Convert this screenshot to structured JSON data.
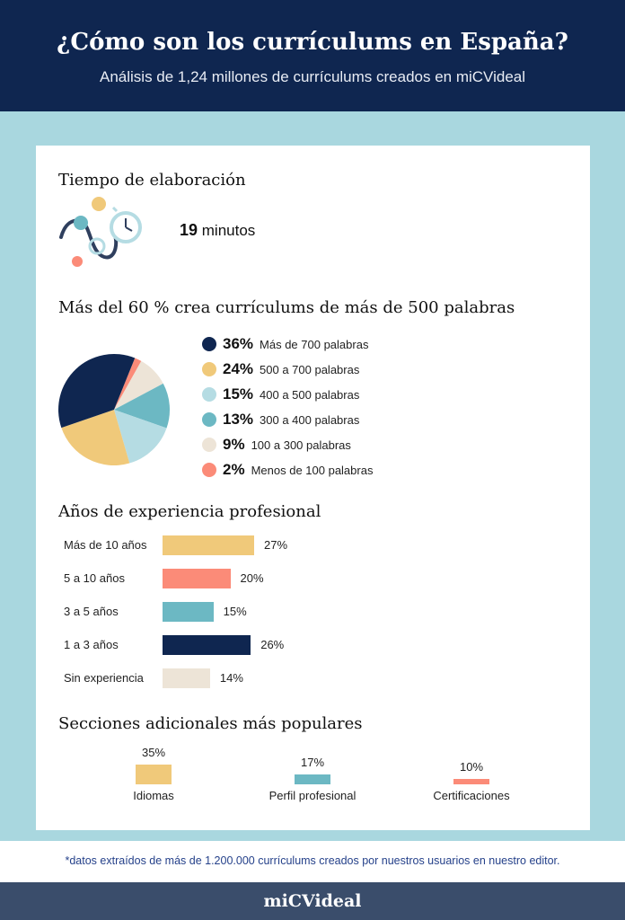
{
  "header": {
    "title": "¿Cómo son los currículums en España?",
    "subtitle": "Análisis de 1,24 millones de currículums creados en miCVideal"
  },
  "time_section": {
    "title": "Tiempo de elaboración",
    "value": "19",
    "unit": " minutos",
    "illustration": "timer-illustration-icon"
  },
  "words_section": {
    "title": "Más del 60 % crea currículums de más de 500 palabras"
  },
  "experience_section": {
    "title": "Años de experiencia profesional"
  },
  "sections_section": {
    "title": "Secciones adicionales más populares"
  },
  "footnote": "*datos extraídos de más de 1.200.000 currículums creados por nuestros usuarios en nuestro editor.",
  "footer": {
    "brand": "miCVideal"
  },
  "colors": {
    "navy": "#0f2650",
    "yellow": "#f0c97a",
    "lightblue": "#b5dce3",
    "teal": "#6cb8c3",
    "beige": "#ede4d7",
    "coral": "#fb8b78",
    "band": "#a9d7df"
  },
  "chart_data": [
    {
      "type": "pie",
      "title": "Más del 60 % crea currículums de más de 500 palabras",
      "slices": [
        {
          "label": "Más de 700 palabras",
          "value": 36,
          "display": "36%",
          "color": "#0f2650"
        },
        {
          "label": "500 a 700 palabras",
          "value": 24,
          "display": "24%",
          "color": "#f0c97a"
        },
        {
          "label": "400 a 500 palabras",
          "value": 15,
          "display": "15%",
          "color": "#b5dce3"
        },
        {
          "label": "300 a 400 palabras",
          "value": 13,
          "display": "13%",
          "color": "#6cb8c3"
        },
        {
          "label": "100 a 300 palabras",
          "value": 9,
          "display": "9%",
          "color": "#ede4d7"
        },
        {
          "label": "Menos de 100 palabras",
          "value": 2,
          "display": "2%",
          "color": "#fb8b78"
        }
      ]
    },
    {
      "type": "bar",
      "title": "Años de experiencia profesional",
      "categories": [
        "Más de 10 años",
        "5 a 10 años",
        "3 a 5 años",
        "1 a 3 años",
        "Sin experiencia"
      ],
      "values": [
        27,
        20,
        15,
        26,
        14
      ],
      "display": [
        "27%",
        "20%",
        "15%",
        "26%",
        "14%"
      ],
      "colors": [
        "#f0c97a",
        "#fb8b78",
        "#6cb8c3",
        "#0f2650",
        "#ede4d7"
      ]
    },
    {
      "type": "bar",
      "title": "Secciones adicionales más populares",
      "categories": [
        "Idiomas",
        "Perfil profesional",
        "Certificaciones"
      ],
      "values": [
        35,
        17,
        10
      ],
      "display": [
        "35%",
        "17%",
        "10%"
      ],
      "colors": [
        "#f0c97a",
        "#6cb8c3",
        "#fb8b78"
      ]
    }
  ]
}
